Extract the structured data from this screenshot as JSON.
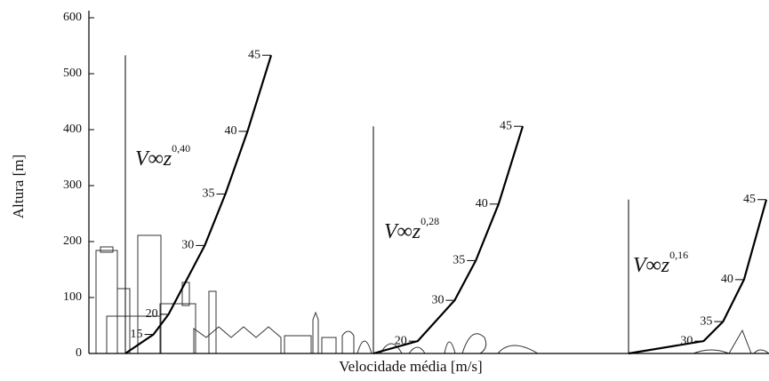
{
  "chart_data": {
    "type": "line",
    "ylabel": "Altura [m]",
    "xlabel": "Velocidade média [m/s]",
    "ylim": [
      0,
      600
    ],
    "yticks": [
      0,
      100,
      200,
      300,
      400,
      500,
      600
    ],
    "series": [
      {
        "formula": "V∞z",
        "exponent": "0,40",
        "color": "#000000",
        "speeds": [
          15,
          20,
          30,
          35,
          40,
          45
        ],
        "values": [
          34,
          70,
          193,
          285,
          397,
          533
        ]
      },
      {
        "formula": "V∞z",
        "exponent": "0,28",
        "color": "#000000",
        "speeds": [
          20,
          30,
          35,
          40,
          45
        ],
        "values": [
          22,
          95,
          166,
          267,
          406
        ]
      },
      {
        "formula": "V∞z",
        "exponent": "0,16",
        "color": "#000000",
        "speeds": [
          30,
          35,
          40,
          45
        ],
        "values": [
          22,
          57,
          132,
          275
        ]
      }
    ]
  }
}
